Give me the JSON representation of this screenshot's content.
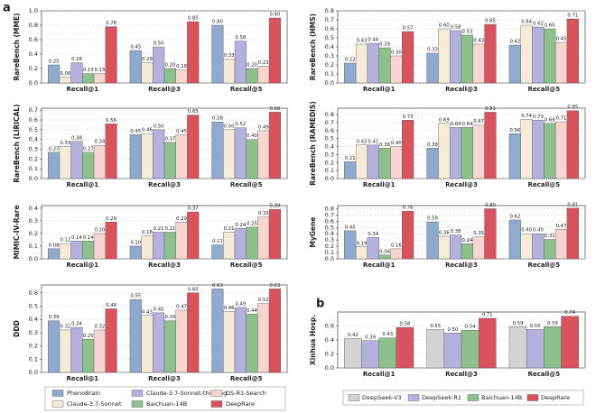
{
  "chart_data": [
    {
      "type": "bar",
      "panel": "a",
      "legend": "below",
      "ylabel": "RareBench (MME)",
      "categories": [
        "Recall@1",
        "Recall@3",
        "Recall@5"
      ],
      "ylim": [
        0,
        1.0
      ],
      "grid": true,
      "yticks": [
        {
          "value": 0,
          "label": "0.0"
        },
        {
          "value": 0.2,
          "label": "0.2"
        },
        {
          "value": 0.4,
          "label": "0.4"
        },
        {
          "value": 0.6,
          "label": "0.6"
        },
        {
          "value": 0.8,
          "label": "0.8"
        },
        {
          "value": 1.0,
          "label": "1.0"
        }
      ],
      "series": [
        {
          "name": "PhenoBrain",
          "color": "#90aacd",
          "values": [
            0.25,
            0.45,
            0.8
          ],
          "value_labels": [
            "0.25",
            "0.45",
            "0.80"
          ]
        },
        {
          "name": "Claude-3.7-Sonnet",
          "color": "#f4ecd9",
          "values": [
            0.08,
            0.28,
            0.33
          ],
          "value_labels": [
            "0.08",
            "0.28",
            "0.33"
          ]
        },
        {
          "name": "Claude-3.7-Sonnet-thinking",
          "color": "#b5b1dd",
          "values": [
            0.28,
            0.5,
            0.58
          ],
          "value_labels": [
            "0.28",
            "0.50",
            "0.58"
          ]
        },
        {
          "name": "Baichuan-14B",
          "color": "#8ec08e",
          "values": [
            0.13,
            0.2,
            0.2
          ],
          "value_labels": [
            "0.13",
            "0.20",
            "0.20"
          ]
        },
        {
          "name": "DS-R1-Search",
          "color": "#f7d6d2",
          "values": [
            0.13,
            0.18,
            0.23
          ],
          "value_labels": [
            "0.13",
            "0.18",
            "0.23"
          ]
        },
        {
          "name": "DeepRare",
          "color": "#d9535f",
          "values": [
            0.78,
            0.85,
            0.9
          ],
          "value_labels": [
            "0.78",
            "0.85",
            "0.90"
          ]
        }
      ]
    },
    {
      "type": "bar",
      "ylabel": "RareBench (HMS)",
      "categories": [
        "Recall@1",
        "Recall@3",
        "Recall@5"
      ],
      "ylim": [
        0,
        0.8
      ],
      "grid": true,
      "yticks": [
        {
          "value": 0,
          "label": "0.0"
        },
        0.1,
        0.2,
        0.3,
        0.4,
        0.5,
        0.6,
        0.7,
        0.8
      ],
      "series": [
        {
          "name": "PhenoBrain",
          "color": "#90aacd",
          "values": [
            0.22,
            0.33,
            0.42
          ],
          "value_labels": [
            "0.22",
            "0.33",
            "0.42"
          ]
        },
        {
          "name": "Claude-3.7-Sonnet",
          "color": "#f4ecd9",
          "values": [
            0.43,
            0.6,
            0.64
          ],
          "value_labels": [
            "0.43",
            "0.60",
            "0.64"
          ]
        },
        {
          "name": "Claude-3.7-Sonnet-thinking",
          "color": "#b5b1dd",
          "values": [
            0.44,
            0.58,
            0.62
          ],
          "value_labels": [
            "0.44",
            "0.58",
            "0.62"
          ]
        },
        {
          "name": "Baichuan-14B",
          "color": "#8ec08e",
          "values": [
            0.39,
            0.53,
            0.6
          ],
          "value_labels": [
            "0.39",
            "0.53",
            "0.60"
          ]
        },
        {
          "name": "DS-R1-Search",
          "color": "#f7d6d2",
          "values": [
            0.3,
            0.43,
            0.45
          ],
          "value_labels": [
            "0.30",
            "0.43",
            "0.45"
          ]
        },
        {
          "name": "DeepRare",
          "color": "#d9535f",
          "values": [
            0.57,
            0.65,
            0.71
          ],
          "value_labels": [
            "0.57",
            "0.65",
            "0.71"
          ]
        }
      ]
    },
    {
      "type": "bar",
      "ylabel": "RareBench (LIRICAL)",
      "categories": [
        "Recall@1",
        "Recall@3",
        "Recall@5"
      ],
      "ylim": [
        0,
        0.72
      ],
      "grid": true,
      "yticks": [
        {
          "value": 0,
          "label": "0.0"
        },
        0.1,
        0.2,
        0.3,
        0.4,
        0.5,
        0.6,
        0.7
      ],
      "series": [
        {
          "name": "PhenoBrain",
          "color": "#90aacd",
          "values": [
            0.27,
            0.45,
            0.58
          ],
          "value_labels": [
            "0.27",
            "0.45",
            "0.58"
          ]
        },
        {
          "name": "Claude-3.7-Sonnet",
          "color": "#f4ecd9",
          "values": [
            0.33,
            0.46,
            0.5
          ],
          "value_labels": [
            "0.33",
            "0.46",
            "0.50"
          ]
        },
        {
          "name": "Claude-3.7-Sonnet-thinking",
          "color": "#b5b1dd",
          "values": [
            0.38,
            0.5,
            0.52
          ],
          "value_labels": [
            "0.38",
            "0.50",
            "0.52"
          ]
        },
        {
          "name": "Baichuan-14B",
          "color": "#8ec08e",
          "values": [
            0.27,
            0.37,
            0.4
          ],
          "value_labels": [
            "0.27",
            "0.37",
            "0.40"
          ]
        },
        {
          "name": "DS-R1-Search",
          "color": "#f7d6d2",
          "values": [
            0.34,
            0.45,
            0.49
          ],
          "value_labels": [
            "0.34",
            "0.45",
            "0.49"
          ]
        },
        {
          "name": "DeepRare",
          "color": "#d9535f",
          "values": [
            0.56,
            0.65,
            0.68
          ],
          "value_labels": [
            "0.56",
            "0.65",
            "0.68"
          ]
        }
      ]
    },
    {
      "type": "bar",
      "ylabel": "RareBench (RAMEDIS)",
      "categories": [
        "Recall@1",
        "Recall@3",
        "Recall@5"
      ],
      "ylim": [
        0,
        0.88
      ],
      "grid": true,
      "yticks": [
        {
          "value": 0,
          "label": "0.0"
        },
        0.1,
        0.2,
        0.3,
        0.4,
        0.5,
        0.6,
        0.7,
        0.8
      ],
      "series": [
        {
          "name": "PhenoBrain",
          "color": "#90aacd",
          "values": [
            0.21,
            0.38,
            0.56
          ],
          "value_labels": [
            "0.21",
            "0.38",
            "0.56"
          ]
        },
        {
          "name": "Claude-3.7-Sonnet",
          "color": "#f4ecd9",
          "values": [
            0.42,
            0.69,
            0.74
          ],
          "value_labels": [
            "0.42",
            "0.69",
            "0.74"
          ]
        },
        {
          "name": "Claude-3.7-Sonnet-thinking",
          "color": "#b5b1dd",
          "values": [
            0.42,
            0.64,
            0.73
          ],
          "value_labels": [
            "0.42",
            "0.64",
            "0.73"
          ]
        },
        {
          "name": "Baichuan-14B",
          "color": "#8ec08e",
          "values": [
            0.38,
            0.64,
            0.69
          ],
          "value_labels": [
            "0.38",
            "0.64",
            "0.69"
          ]
        },
        {
          "name": "DS-R1-Search",
          "color": "#f7d6d2",
          "values": [
            0.4,
            0.67,
            0.71
          ],
          "value_labels": [
            "0.40",
            "0.67",
            "0.71"
          ]
        },
        {
          "name": "DeepRare",
          "color": "#d9535f",
          "values": [
            0.73,
            0.83,
            0.85
          ],
          "value_labels": [
            "0.73",
            "0.83",
            "0.85"
          ]
        }
      ]
    },
    {
      "type": "bar",
      "ylabel": "MIMIC-IV-Rare",
      "categories": [
        "Recall@1",
        "Recall@3",
        "Recall@5"
      ],
      "ylim": [
        0,
        0.42
      ],
      "grid": true,
      "yticks": [
        {
          "value": 0,
          "label": "0.0"
        },
        0.1,
        0.2,
        0.3,
        0.4
      ],
      "series": [
        {
          "name": "PhenoBrain",
          "color": "#90aacd",
          "values": [
            0.08,
            0.1,
            0.11
          ],
          "value_labels": [
            "0.08",
            "0.10",
            "0.11"
          ]
        },
        {
          "name": "Claude-3.7-Sonnet",
          "color": "#f4ecd9",
          "values": [
            0.12,
            0.18,
            0.21
          ],
          "value_labels": [
            "0.12",
            "0.18",
            "0.21"
          ]
        },
        {
          "name": "Claude-3.7-Sonnet-thinking",
          "color": "#b5b1dd",
          "values": [
            0.14,
            0.21,
            0.24
          ],
          "value_labels": [
            "0.14",
            "0.21",
            "0.24"
          ]
        },
        {
          "name": "Baichuan-14B",
          "color": "#8ec08e",
          "values": [
            0.14,
            0.21,
            0.25
          ],
          "value_labels": [
            "0.14",
            "0.21",
            "0.25"
          ]
        },
        {
          "name": "DS-R1-Search",
          "color": "#f7d6d2",
          "values": [
            0.2,
            0.29,
            0.33
          ],
          "value_labels": [
            "0.20",
            "0.29",
            "0.33"
          ]
        },
        {
          "name": "DeepRare",
          "color": "#d9535f",
          "values": [
            0.29,
            0.37,
            0.39
          ],
          "value_labels": [
            "0.29",
            "0.37",
            "0.39"
          ]
        }
      ]
    },
    {
      "type": "bar",
      "ylabel": "MyGene",
      "categories": [
        "Recall@1",
        "Recall@3",
        "Recall@5"
      ],
      "ylim": [
        0,
        0.85
      ],
      "grid": true,
      "yticks": [
        {
          "value": 0,
          "label": "0.0"
        },
        0.1,
        0.2,
        0.3,
        0.4,
        0.5,
        0.6,
        0.7,
        0.8
      ],
      "series": [
        {
          "name": "PhenoBrain",
          "color": "#90aacd",
          "values": [
            0.45,
            0.59,
            0.62
          ],
          "value_labels": [
            "0.45",
            "0.59",
            "0.62"
          ]
        },
        {
          "name": "Claude-3.7-Sonnet",
          "color": "#f4ecd9",
          "values": [
            0.19,
            0.36,
            0.4
          ],
          "value_labels": [
            "0.19",
            "0.36",
            "0.40"
          ]
        },
        {
          "name": "Claude-3.7-Sonnet-thinking",
          "color": "#b5b1dd",
          "values": [
            0.34,
            0.38,
            0.4
          ],
          "value_labels": [
            "0.34",
            "0.38",
            "0.40"
          ]
        },
        {
          "name": "Baichuan-14B",
          "color": "#8ec08e",
          "values": [
            0.06,
            0.24,
            0.31
          ],
          "value_labels": [
            "0.06",
            "0.24",
            "0.31"
          ]
        },
        {
          "name": "DS-R1-Search",
          "color": "#f7d6d2",
          "values": [
            0.16,
            0.35,
            0.47
          ],
          "value_labels": [
            "0.16",
            "0.35",
            "0.47"
          ]
        },
        {
          "name": "DeepRare",
          "color": "#d9535f",
          "values": [
            0.76,
            0.8,
            0.81
          ],
          "value_labels": [
            "0.76",
            "0.80",
            "0.81"
          ]
        }
      ]
    },
    {
      "type": "bar",
      "ylabel": "DDD",
      "categories": [
        "Recall@1",
        "Recall@3",
        "Recall@5"
      ],
      "ylim": [
        0,
        0.66
      ],
      "grid": true,
      "yticks": [
        {
          "value": 0,
          "label": "0.0"
        },
        0.1,
        0.2,
        0.3,
        0.4,
        0.5,
        0.6
      ],
      "series": [
        {
          "name": "PhenoBrain",
          "color": "#90aacd",
          "values": [
            0.39,
            0.55,
            0.63
          ],
          "value_labels": [
            "0.39",
            "0.55",
            "0.63"
          ]
        },
        {
          "name": "Claude-3.7-Sonnet",
          "color": "#f4ecd9",
          "values": [
            0.32,
            0.43,
            0.46
          ],
          "value_labels": [
            "0.32",
            "0.43",
            "0.46"
          ]
        },
        {
          "name": "Claude-3.7-Sonnet-thinking",
          "color": "#b5b1dd",
          "values": [
            0.34,
            0.45,
            0.49
          ],
          "value_labels": [
            "0.34",
            "0.45",
            "0.49"
          ]
        },
        {
          "name": "Baichuan-14B",
          "color": "#8ec08e",
          "values": [
            0.25,
            0.39,
            0.44
          ],
          "value_labels": [
            "0.25",
            "0.39",
            "0.44"
          ]
        },
        {
          "name": "DS-R1-Search",
          "color": "#f7d6d2",
          "values": [
            0.32,
            0.47,
            0.52
          ],
          "value_labels": [
            "0.32",
            "0.47",
            "0.52"
          ]
        },
        {
          "name": "DeepRare",
          "color": "#d9535f",
          "values": [
            0.48,
            0.6,
            0.63
          ],
          "value_labels": [
            "0.48",
            "0.60",
            "0.63"
          ]
        }
      ]
    },
    {
      "type": "bar",
      "panel": "b",
      "legend": "below",
      "ylabel": "Xinhua Hosp.",
      "categories": [
        "Recall@1",
        "Recall@3",
        "Recall@5"
      ],
      "ylim": [
        0,
        0.8
      ],
      "grid": true,
      "yticks": [
        {
          "value": 0,
          "label": "0.0"
        },
        {
          "value": 0.2,
          "label": "0.2"
        },
        {
          "value": 0.4,
          "label": "0.4"
        },
        {
          "value": 0.6,
          "label": "0.6"
        }
      ],
      "series": [
        {
          "name": "DeepSeek-V3",
          "color": "#d3d3d3",
          "values": [
            0.42,
            0.55,
            0.59
          ],
          "value_labels": [
            "0.42",
            "0.55",
            "0.59"
          ]
        },
        {
          "name": "DeepSeek-R1",
          "color": "#b5b1dd",
          "values": [
            0.39,
            0.5,
            0.55
          ],
          "value_labels": [
            "0.39",
            "0.50",
            "0.55"
          ]
        },
        {
          "name": "Baichuan-14B",
          "color": "#8ec08e",
          "values": [
            0.43,
            0.54,
            0.59
          ],
          "value_labels": [
            "0.43",
            "0.54",
            "0.59"
          ]
        },
        {
          "name": "DeepRare",
          "color": "#d9535f",
          "values": [
            0.58,
            0.71,
            0.74
          ],
          "value_labels": [
            "0.58",
            "0.71",
            "0.74"
          ]
        }
      ]
    }
  ]
}
